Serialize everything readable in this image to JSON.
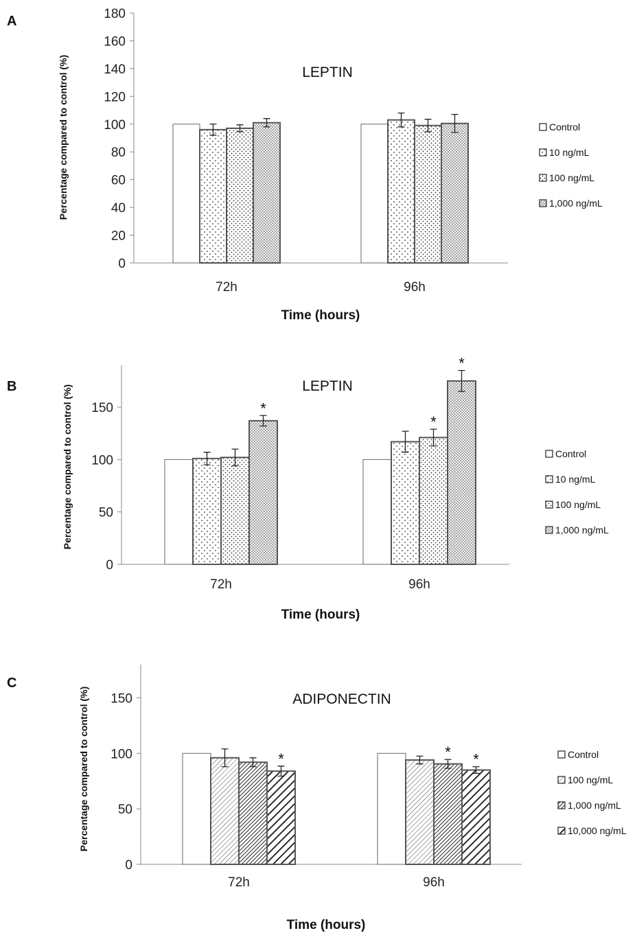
{
  "panels": [
    {
      "letter": "A"
    },
    {
      "letter": "B"
    },
    {
      "letter": "C"
    }
  ],
  "chart_data": [
    {
      "type": "bar",
      "title": "LEPTIN",
      "xlabel": "Time (hours)",
      "ylabel": "Percentage compared to control (%)",
      "categories": [
        "72h",
        "96h"
      ],
      "ylim": [
        0,
        180
      ],
      "yticks": [
        0,
        20,
        40,
        60,
        80,
        100,
        120,
        140,
        160,
        180
      ],
      "series": [
        {
          "name": "Control",
          "pattern": "plain",
          "values": [
            100,
            100
          ],
          "errors": [
            0,
            0
          ],
          "significant": [
            false,
            false
          ]
        },
        {
          "name": "10 ng/mL",
          "pattern": "dots-sparse",
          "values": [
            96,
            103
          ],
          "errors": [
            4,
            5
          ],
          "significant": [
            false,
            false
          ]
        },
        {
          "name": "100 ng/mL",
          "pattern": "dots-medium",
          "values": [
            97,
            99
          ],
          "errors": [
            2.5,
            4.5
          ],
          "significant": [
            false,
            false
          ]
        },
        {
          "name": "1,000 ng/mL",
          "pattern": "dots-dense",
          "values": [
            101,
            100.5
          ],
          "errors": [
            3,
            6.5
          ],
          "significant": [
            false,
            false
          ]
        }
      ],
      "significance_marker": "*",
      "legend_position": "right",
      "grid": false
    },
    {
      "type": "bar",
      "title": "LEPTIN",
      "xlabel": "Time (hours)",
      "ylabel": "Percentage compared to control (%)",
      "categories": [
        "72h",
        "96h"
      ],
      "ylim": [
        0,
        190
      ],
      "yticks": [
        0,
        50,
        100,
        150
      ],
      "series": [
        {
          "name": "Control",
          "pattern": "plain",
          "values": [
            100,
            100
          ],
          "errors": [
            0,
            0
          ],
          "significant": [
            false,
            false
          ]
        },
        {
          "name": "10 ng/mL",
          "pattern": "dots-sparse",
          "values": [
            101,
            117
          ],
          "errors": [
            6,
            10
          ],
          "significant": [
            false,
            false
          ]
        },
        {
          "name": "100 ng/mL",
          "pattern": "dots-medium",
          "values": [
            102,
            121
          ],
          "errors": [
            8,
            8
          ],
          "significant": [
            false,
            true
          ]
        },
        {
          "name": "1,000 ng/mL",
          "pattern": "dots-dense",
          "values": [
            137,
            175
          ],
          "errors": [
            5,
            10
          ],
          "significant": [
            true,
            true
          ]
        }
      ],
      "significance_marker": "*",
      "legend_position": "right",
      "grid": false
    },
    {
      "type": "bar",
      "title": "ADIPONECTIN",
      "xlabel": "Time (hours)",
      "ylabel": "Percentage compared to control (%)",
      "categories": [
        "72h",
        "96h"
      ],
      "ylim": [
        0,
        180
      ],
      "yticks": [
        0,
        50,
        100,
        150
      ],
      "series": [
        {
          "name": "Control",
          "pattern": "plain",
          "values": [
            100,
            100
          ],
          "errors": [
            0,
            0
          ],
          "significant": [
            false,
            false
          ]
        },
        {
          "name": "100 ng/mL",
          "pattern": "hatch-light",
          "values": [
            96,
            94
          ],
          "errors": [
            8,
            3.5
          ],
          "significant": [
            false,
            false
          ]
        },
        {
          "name": "1,000 ng/mL",
          "pattern": "hatch-dense",
          "values": [
            92,
            90.5
          ],
          "errors": [
            4,
            4
          ],
          "significant": [
            false,
            true
          ]
        },
        {
          "name": "10,000 ng/mL",
          "pattern": "hatch-bold",
          "values": [
            84,
            85
          ],
          "errors": [
            4.5,
            3
          ],
          "significant": [
            true,
            true
          ]
        }
      ],
      "significance_marker": "*",
      "legend_position": "right",
      "grid": false
    }
  ]
}
